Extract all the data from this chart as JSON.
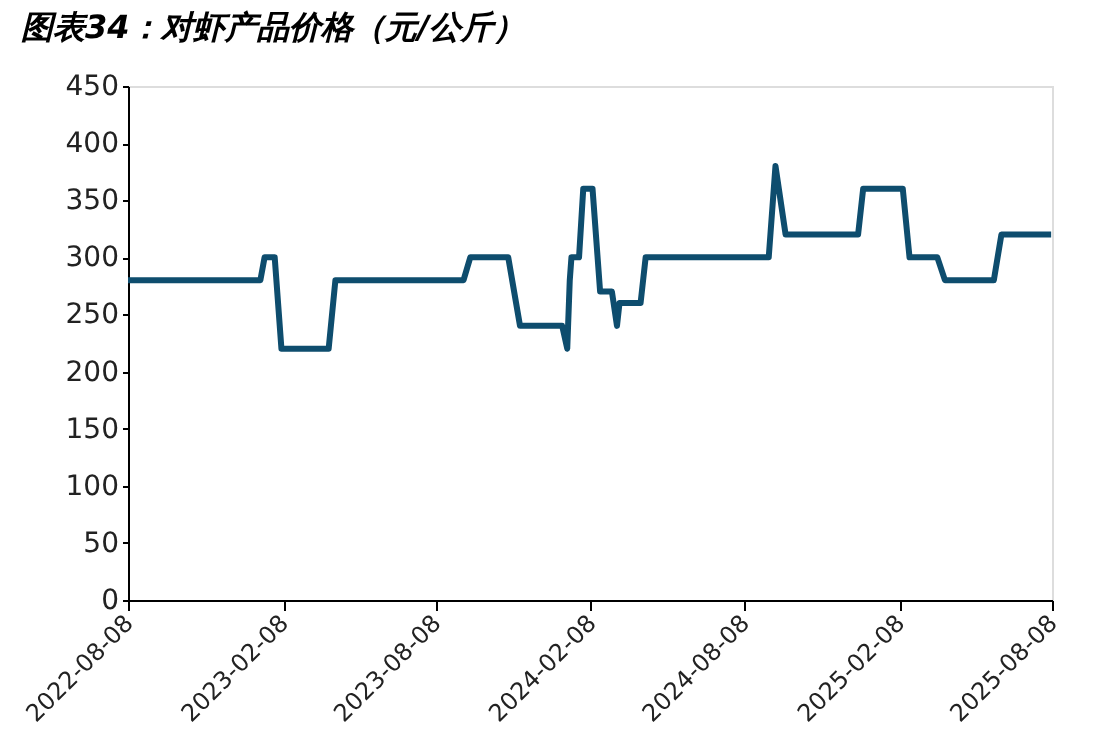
{
  "chart_data": {
    "type": "line",
    "title": "图表34：对虾产品价格（元/公斤）",
    "x": [
      "2022-08-08",
      "2023-01-12",
      "2023-01-17",
      "2023-01-29",
      "2023-02-06",
      "2023-04-03",
      "2023-04-11",
      "2023-09-10",
      "2023-09-18",
      "2023-11-02",
      "2023-11-16",
      "2024-01-02",
      "2024-01-05",
      "2024-01-11",
      "2024-01-14",
      "2024-01-16",
      "2024-01-25",
      "2024-01-30",
      "2024-02-10",
      "2024-02-19",
      "2024-03-04",
      "2024-03-10",
      "2024-03-13",
      "2024-04-07",
      "2024-04-13",
      "2024-09-06",
      "2024-09-14",
      "2024-09-26",
      "2024-12-21",
      "2024-12-27",
      "2025-02-12",
      "2025-02-20",
      "2025-03-25",
      "2025-04-03",
      "2025-05-31",
      "2025-06-09",
      "2025-08-07"
    ],
    "series": [
      {
        "color": "#0e4d6e",
        "values": [
          280,
          280,
          300,
          300,
          220,
          220,
          280,
          280,
          300,
          300,
          240,
          240,
          240,
          220,
          280,
          300,
          300,
          360,
          360,
          270,
          270,
          240,
          260,
          260,
          300,
          300,
          380,
          320,
          320,
          360,
          360,
          300,
          300,
          280,
          280,
          320,
          320
        ]
      }
    ],
    "xlim": [
      "2022-08-08",
      "2025-08-08"
    ],
    "xticks": [
      "2022-08-08",
      "2023-02-08",
      "2023-08-08",
      "2024-02-08",
      "2024-08-08",
      "2025-02-08",
      "2025-08-08"
    ],
    "ylim": [
      0,
      450
    ],
    "yticks": [
      0,
      50,
      100,
      150,
      200,
      250,
      300,
      350,
      400,
      450
    ],
    "grid": false,
    "legend": false,
    "marker": "none",
    "line_style": "solid"
  }
}
